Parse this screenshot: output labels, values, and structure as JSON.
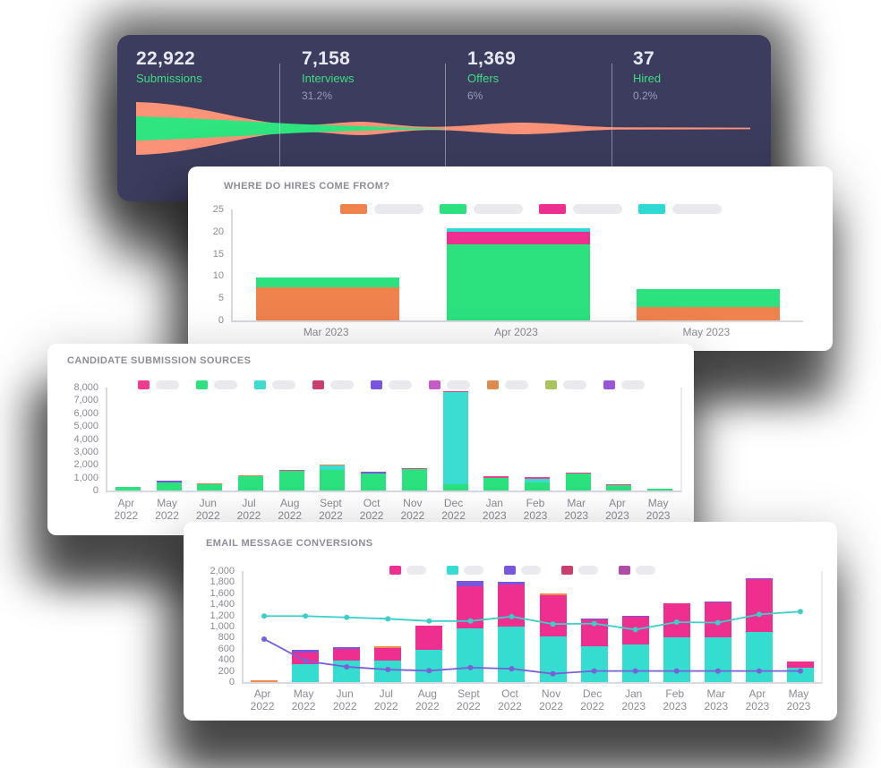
{
  "funnel_card": {
    "stats": [
      {
        "value": "22,922",
        "label": "Submissions",
        "percent": ""
      },
      {
        "value": "7,158",
        "label": "Interviews",
        "percent": "31.2%"
      },
      {
        "value": "1,369",
        "label": "Offers",
        "percent": "6%"
      },
      {
        "value": "37",
        "label": "Hired",
        "percent": "0.2%"
      }
    ],
    "colors": {
      "background": "#3c3c5e",
      "outer_band": "#fb9379",
      "inner_band": "#2ee57f"
    }
  },
  "chart_data": [
    {
      "type": "area",
      "variant": "funnel",
      "stages": [
        {
          "label": "Submissions",
          "value": 22922
        },
        {
          "label": "Interviews",
          "value": 7158,
          "percent": "31.2%"
        },
        {
          "label": "Offers",
          "value": 1369,
          "percent": "6%"
        },
        {
          "label": "Hired",
          "value": 37,
          "percent": "0.2%"
        }
      ],
      "colors": {
        "outer": "#fb9379",
        "inner": "#2ee57f"
      },
      "background": "#3c3c5e"
    },
    {
      "type": "bar",
      "stacked": true,
      "title": "WHERE DO HIRES COME FROM?",
      "categories": [
        "Mar 2023",
        "Apr 2023",
        "May 2023"
      ],
      "series": [
        {
          "name": "orange",
          "color": "#f0824e",
          "values": [
            7.5,
            0,
            3
          ]
        },
        {
          "name": "green",
          "color": "#2be27f",
          "values": [
            2.2,
            17.2,
            4
          ]
        },
        {
          "name": "pink",
          "color": "#ef2f8f",
          "textured": true,
          "values": [
            0,
            2.8,
            0
          ]
        },
        {
          "name": "teal",
          "color": "#2fd9d4",
          "values": [
            0,
            0.7,
            0
          ]
        }
      ],
      "ylim": [
        0,
        25
      ],
      "ytick_labels": [
        "25",
        "20",
        "15",
        "10",
        "5",
        "0"
      ],
      "legend": [
        {
          "color": "#f0824e"
        },
        {
          "color": "#2be27f"
        },
        {
          "color": "#ef2f8f",
          "textured": true
        },
        {
          "color": "#2fd9d4"
        }
      ],
      "legend_labels_redacted": true,
      "grid": false,
      "legend_position": "top"
    },
    {
      "type": "bar",
      "stacked": true,
      "title": "CANDIDATE SUBMISSION SOURCES",
      "categories": [
        "Apr 2022",
        "May 2022",
        "Jun 2022",
        "Jul 2022",
        "Aug 2022",
        "Sept 2022",
        "Oct 2022",
        "Nov 2022",
        "Dec 2022",
        "Jan 2023",
        "Feb 2023",
        "Mar 2023",
        "Apr 2023",
        "May 2023"
      ],
      "series": [
        {
          "name": "green",
          "color": "#2be27f",
          "values": [
            250,
            600,
            500,
            1100,
            1540,
            1600,
            1300,
            1700,
            500,
            950,
            630,
            1290,
            440,
            160
          ]
        },
        {
          "name": "teal",
          "color": "#3bdcd1",
          "values": [
            0,
            0,
            0,
            0,
            0,
            350,
            0,
            0,
            7150,
            0,
            260,
            0,
            0,
            0
          ]
        },
        {
          "name": "purple",
          "color": "#7a55e0",
          "values": [
            0,
            140,
            0,
            0,
            0,
            0,
            140,
            0,
            0,
            0,
            0,
            0,
            0,
            0
          ]
        },
        {
          "name": "orange",
          "color": "#e0874d",
          "textured": true,
          "values": [
            0,
            0,
            80,
            100,
            0,
            40,
            0,
            0,
            0,
            0,
            0,
            0,
            0,
            0
          ]
        },
        {
          "name": "pink",
          "color": "#e2458d",
          "textured": true,
          "values": [
            0,
            0,
            0,
            0,
            60,
            0,
            0,
            60,
            100,
            140,
            130,
            100,
            70,
            0
          ]
        }
      ],
      "ylim": [
        0,
        8000
      ],
      "ytick_labels": [
        "8,000",
        "7,000",
        "6,000",
        "5,000",
        "4,000",
        "3,000",
        "2,000",
        "1,000",
        "0"
      ],
      "legend": [
        {
          "color": "#f03b8e",
          "textured": true
        },
        {
          "color": "#2be27f"
        },
        {
          "color": "#3bdcd1"
        },
        {
          "color": "#c9406e",
          "textured": true
        },
        {
          "color": "#7a55e0"
        },
        {
          "color": "#c75bc9",
          "textured": true
        },
        {
          "color": "#dd8a4e"
        },
        {
          "color": "#a8c45e"
        },
        {
          "color": "#9b55d8",
          "textured": true
        }
      ],
      "legend_labels_redacted": true,
      "grid": false,
      "legend_position": "top"
    },
    {
      "type": "bar",
      "stacked": true,
      "title": "EMAIL MESSAGE CONVERSIONS",
      "categories": [
        "Apr 2022",
        "May 2022",
        "Jun 2022",
        "Jul 2022",
        "Aug 2022",
        "Sept 2022",
        "Oct 2022",
        "Nov 2022",
        "Dec 2022",
        "Jan 2023",
        "Feb 2023",
        "Mar 2023",
        "Apr 2023",
        "May 2023"
      ],
      "series": [
        {
          "name": "teal",
          "color": "#35dcd0",
          "values": [
            0,
            330,
            390,
            390,
            580,
            960,
            1000,
            830,
            640,
            680,
            800,
            800,
            900,
            260
          ]
        },
        {
          "name": "pink",
          "color": "#ef2f8f",
          "textured": true,
          "values": [
            0,
            210,
            210,
            220,
            440,
            760,
            760,
            740,
            490,
            500,
            620,
            630,
            950,
            110
          ]
        },
        {
          "name": "purple",
          "color": "#7857de",
          "values": [
            0,
            40,
            30,
            0,
            0,
            110,
            40,
            0,
            20,
            20,
            0,
            20,
            20,
            0
          ]
        },
        {
          "name": "orange",
          "color": "#f08a4b",
          "values": [
            30,
            0,
            0,
            40,
            0,
            0,
            0,
            30,
            0,
            0,
            0,
            0,
            0,
            0
          ]
        }
      ],
      "lines": [
        {
          "name": "teal-line",
          "color": "#3bcfc9",
          "values": [
            1190,
            1190,
            1165,
            1140,
            1100,
            1100,
            1180,
            1045,
            1055,
            945,
            1080,
            1070,
            1220,
            1270
          ]
        },
        {
          "name": "purple-line",
          "color": "#7a5fd8",
          "values": [
            775,
            380,
            275,
            225,
            205,
            260,
            240,
            150,
            200,
            200,
            200,
            200,
            200,
            200
          ]
        }
      ],
      "ylim": [
        0,
        2000
      ],
      "ytick_labels": [
        "2,000",
        "1,800",
        "1,600",
        "1,400",
        "1,200",
        "1,000",
        "800",
        "600",
        "400",
        "200",
        "0"
      ],
      "legend": [
        {
          "color": "#ef2f8f"
        },
        {
          "color": "#35dcd0"
        },
        {
          "color": "#7857de"
        },
        {
          "color": "#c9406e",
          "textured": true
        },
        {
          "color": "#b04ba8",
          "textured": true
        }
      ],
      "legend_labels_redacted": true,
      "grid": false,
      "legend_position": "top"
    }
  ]
}
